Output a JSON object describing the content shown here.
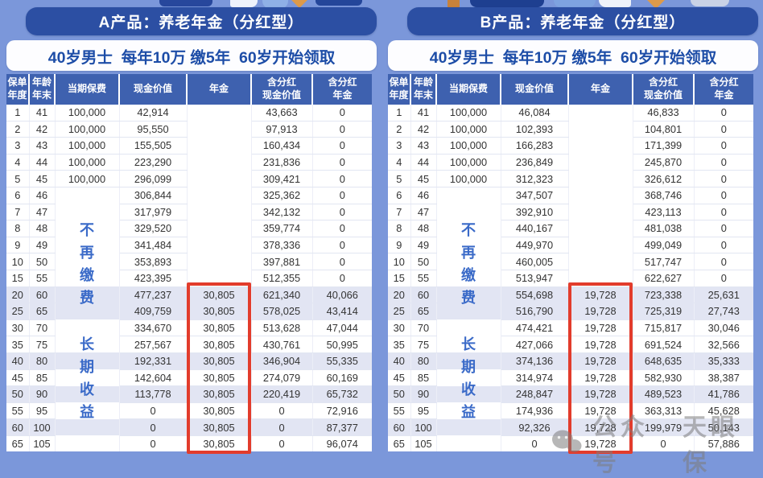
{
  "colors": {
    "page_bg": "#7b97da",
    "title_bar_bg": "#2c4fa3",
    "header_bg": "#3e61af",
    "row_shade": "#e2e5f3",
    "highlight_red": "#e23c2c",
    "subtitle_text": "#1d4da7",
    "vertical_note_blue": "#3a6ac8",
    "watermark_gray": "#7d7d7d"
  },
  "watermark": {
    "icon": "wechat-icon",
    "text1": "公众号",
    "text2": "天眼保"
  },
  "panels": [
    {
      "title": "A产品：养老年金（分红型）",
      "subtitle": "40岁男士  每年10万 缴5年  60岁开始领取",
      "columns": [
        [
          "保单",
          "年度"
        ],
        [
          "年龄",
          "年末"
        ],
        [
          "当期保费"
        ],
        [
          "现金价值"
        ],
        [
          "年金"
        ],
        [
          "含分红",
          "现金价值"
        ],
        [
          "含分红",
          "年金"
        ]
      ],
      "premium_note_1": "不再缴费",
      "premium_note_2": "长期收益",
      "rows": [
        {
          "c": [
            "1",
            "41",
            "100,000",
            "42,914",
            "",
            "43,663",
            "0"
          ],
          "shaded": false
        },
        {
          "c": [
            "2",
            "42",
            "100,000",
            "95,550",
            "",
            "97,913",
            "0"
          ],
          "shaded": false
        },
        {
          "c": [
            "3",
            "43",
            "100,000",
            "155,505",
            "",
            "160,434",
            "0"
          ],
          "shaded": false
        },
        {
          "c": [
            "4",
            "44",
            "100,000",
            "223,290",
            "",
            "231,836",
            "0"
          ],
          "shaded": false
        },
        {
          "c": [
            "5",
            "45",
            "100,000",
            "296,099",
            "",
            "309,421",
            "0"
          ],
          "shaded": false
        },
        {
          "c": [
            "6",
            "46",
            "",
            "306,844",
            "",
            "325,362",
            "0"
          ],
          "shaded": false
        },
        {
          "c": [
            "7",
            "47",
            "",
            "317,979",
            "",
            "342,132",
            "0"
          ],
          "shaded": false
        },
        {
          "c": [
            "8",
            "48",
            "",
            "329,520",
            "",
            "359,774",
            "0"
          ],
          "shaded": false
        },
        {
          "c": [
            "9",
            "49",
            "",
            "341,484",
            "",
            "378,336",
            "0"
          ],
          "shaded": false
        },
        {
          "c": [
            "10",
            "50",
            "",
            "353,893",
            "",
            "397,881",
            "0"
          ],
          "shaded": false
        },
        {
          "c": [
            "15",
            "55",
            "",
            "423,395",
            "",
            "512,355",
            "0"
          ],
          "shaded": false
        },
        {
          "c": [
            "20",
            "60",
            "",
            "477,237",
            "30,805",
            "621,340",
            "40,066"
          ],
          "shaded": true
        },
        {
          "c": [
            "25",
            "65",
            "",
            "409,759",
            "30,805",
            "578,025",
            "43,414"
          ],
          "shaded": true
        },
        {
          "c": [
            "30",
            "70",
            "",
            "334,670",
            "30,805",
            "513,628",
            "47,044"
          ],
          "shaded": false
        },
        {
          "c": [
            "35",
            "75",
            "",
            "257,567",
            "30,805",
            "430,761",
            "50,995"
          ],
          "shaded": false
        },
        {
          "c": [
            "40",
            "80",
            "",
            "192,331",
            "30,805",
            "346,904",
            "55,335"
          ],
          "shaded": true
        },
        {
          "c": [
            "45",
            "85",
            "",
            "142,604",
            "30,805",
            "274,079",
            "60,169"
          ],
          "shaded": false
        },
        {
          "c": [
            "50",
            "90",
            "",
            "113,778",
            "30,805",
            "220,419",
            "65,732"
          ],
          "shaded": true
        },
        {
          "c": [
            "55",
            "95",
            "",
            "0",
            "30,805",
            "0",
            "72,916"
          ],
          "shaded": false
        },
        {
          "c": [
            "60",
            "100",
            "",
            "0",
            "30,805",
            "0",
            "87,377"
          ],
          "shaded": true
        },
        {
          "c": [
            "65",
            "105",
            "",
            "0",
            "30,805",
            "0",
            "96,074"
          ],
          "shaded": false
        }
      ]
    },
    {
      "title": "B产品：养老年金（分红型）",
      "subtitle": "40岁男士  每年10万 缴5年  60岁开始领取",
      "columns": [
        [
          "保单",
          "年度"
        ],
        [
          "年龄",
          "年末"
        ],
        [
          "当期保费"
        ],
        [
          "现金价值"
        ],
        [
          "年金"
        ],
        [
          "含分红",
          "现金价值"
        ],
        [
          "含分红",
          "年金"
        ]
      ],
      "premium_note_1": "不再缴费",
      "premium_note_2": "长期收益",
      "rows": [
        {
          "c": [
            "1",
            "41",
            "100,000",
            "46,084",
            "",
            "46,833",
            "0"
          ],
          "shaded": false
        },
        {
          "c": [
            "2",
            "42",
            "100,000",
            "102,393",
            "",
            "104,801",
            "0"
          ],
          "shaded": false
        },
        {
          "c": [
            "3",
            "43",
            "100,000",
            "166,283",
            "",
            "171,399",
            "0"
          ],
          "shaded": false
        },
        {
          "c": [
            "4",
            "44",
            "100,000",
            "236,849",
            "",
            "245,870",
            "0"
          ],
          "shaded": false
        },
        {
          "c": [
            "5",
            "45",
            "100,000",
            "312,323",
            "",
            "326,612",
            "0"
          ],
          "shaded": false
        },
        {
          "c": [
            "6",
            "46",
            "",
            "347,507",
            "",
            "368,746",
            "0"
          ],
          "shaded": false
        },
        {
          "c": [
            "7",
            "47",
            "",
            "392,910",
            "",
            "423,113",
            "0"
          ],
          "shaded": false
        },
        {
          "c": [
            "8",
            "48",
            "",
            "440,167",
            "",
            "481,038",
            "0"
          ],
          "shaded": false
        },
        {
          "c": [
            "9",
            "49",
            "",
            "449,970",
            "",
            "499,049",
            "0"
          ],
          "shaded": false
        },
        {
          "c": [
            "10",
            "50",
            "",
            "460,005",
            "",
            "517,747",
            "0"
          ],
          "shaded": false
        },
        {
          "c": [
            "15",
            "55",
            "",
            "513,947",
            "",
            "622,627",
            "0"
          ],
          "shaded": false
        },
        {
          "c": [
            "20",
            "60",
            "",
            "554,698",
            "19,728",
            "723,338",
            "25,631"
          ],
          "shaded": true
        },
        {
          "c": [
            "25",
            "65",
            "",
            "516,790",
            "19,728",
            "725,319",
            "27,743"
          ],
          "shaded": true
        },
        {
          "c": [
            "30",
            "70",
            "",
            "474,421",
            "19,728",
            "715,817",
            "30,046"
          ],
          "shaded": false
        },
        {
          "c": [
            "35",
            "75",
            "",
            "427,066",
            "19,728",
            "691,524",
            "32,566"
          ],
          "shaded": false
        },
        {
          "c": [
            "40",
            "80",
            "",
            "374,136",
            "19,728",
            "648,635",
            "35,333"
          ],
          "shaded": true
        },
        {
          "c": [
            "45",
            "85",
            "",
            "314,974",
            "19,728",
            "582,930",
            "38,387"
          ],
          "shaded": false
        },
        {
          "c": [
            "50",
            "90",
            "",
            "248,847",
            "19,728",
            "489,523",
            "41,786"
          ],
          "shaded": true
        },
        {
          "c": [
            "55",
            "95",
            "",
            "174,936",
            "19,728",
            "363,313",
            "45,628"
          ],
          "shaded": false
        },
        {
          "c": [
            "60",
            "100",
            "",
            "92,326",
            "19,728",
            "199,979",
            "50,143"
          ],
          "shaded": true
        },
        {
          "c": [
            "65",
            "105",
            "",
            "0",
            "19,728",
            "0",
            "57,886"
          ],
          "shaded": false
        }
      ]
    }
  ]
}
